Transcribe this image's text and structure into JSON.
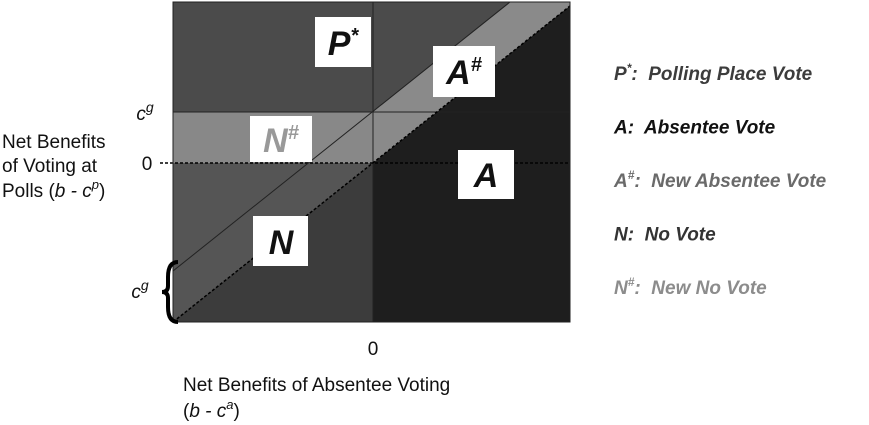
{
  "regions": [
    {
      "base": "P",
      "sup": "*"
    },
    {
      "base": "A",
      "sup": "#"
    },
    {
      "base": "N",
      "sup": "#"
    },
    {
      "base": "A"
    },
    {
      "base": "N"
    }
  ],
  "y_axis": {
    "title_line1": "Net Benefits",
    "title_line2": "of Voting at",
    "title_line3_start": "Polls (",
    "title_b": "b",
    "title_minus": " - c",
    "title_sup": "p",
    "title_end": ")",
    "tick_cg": {
      "base": "c",
      "sup": "g"
    },
    "tick_zero": "0",
    "brace_cg": {
      "base": "c",
      "sup": "g"
    }
  },
  "x_axis": {
    "tick_zero": "0",
    "title_line1": "Net Benefits of Absentee Voting",
    "title_start": "(",
    "title_b": "b",
    "title_minus": " - c",
    "title_sup": "a",
    "title_end": ")"
  },
  "legend": [
    {
      "symbol": "P",
      "sup": "*",
      "text": ":  Polling Place Vote",
      "color": "#3c3c3c"
    },
    {
      "symbol": "A",
      "text": ":  Absentee Vote",
      "color": "#111111"
    },
    {
      "symbol": "A",
      "sup": "#",
      "text": ":  New Absentee Vote",
      "color": "#6a6a6a"
    },
    {
      "symbol": "N",
      "text": ":  No Vote",
      "color": "#333333"
    },
    {
      "symbol": "N",
      "sup": "#",
      "text": ":  New No Vote",
      "color": "#8c8c8c"
    }
  ]
}
